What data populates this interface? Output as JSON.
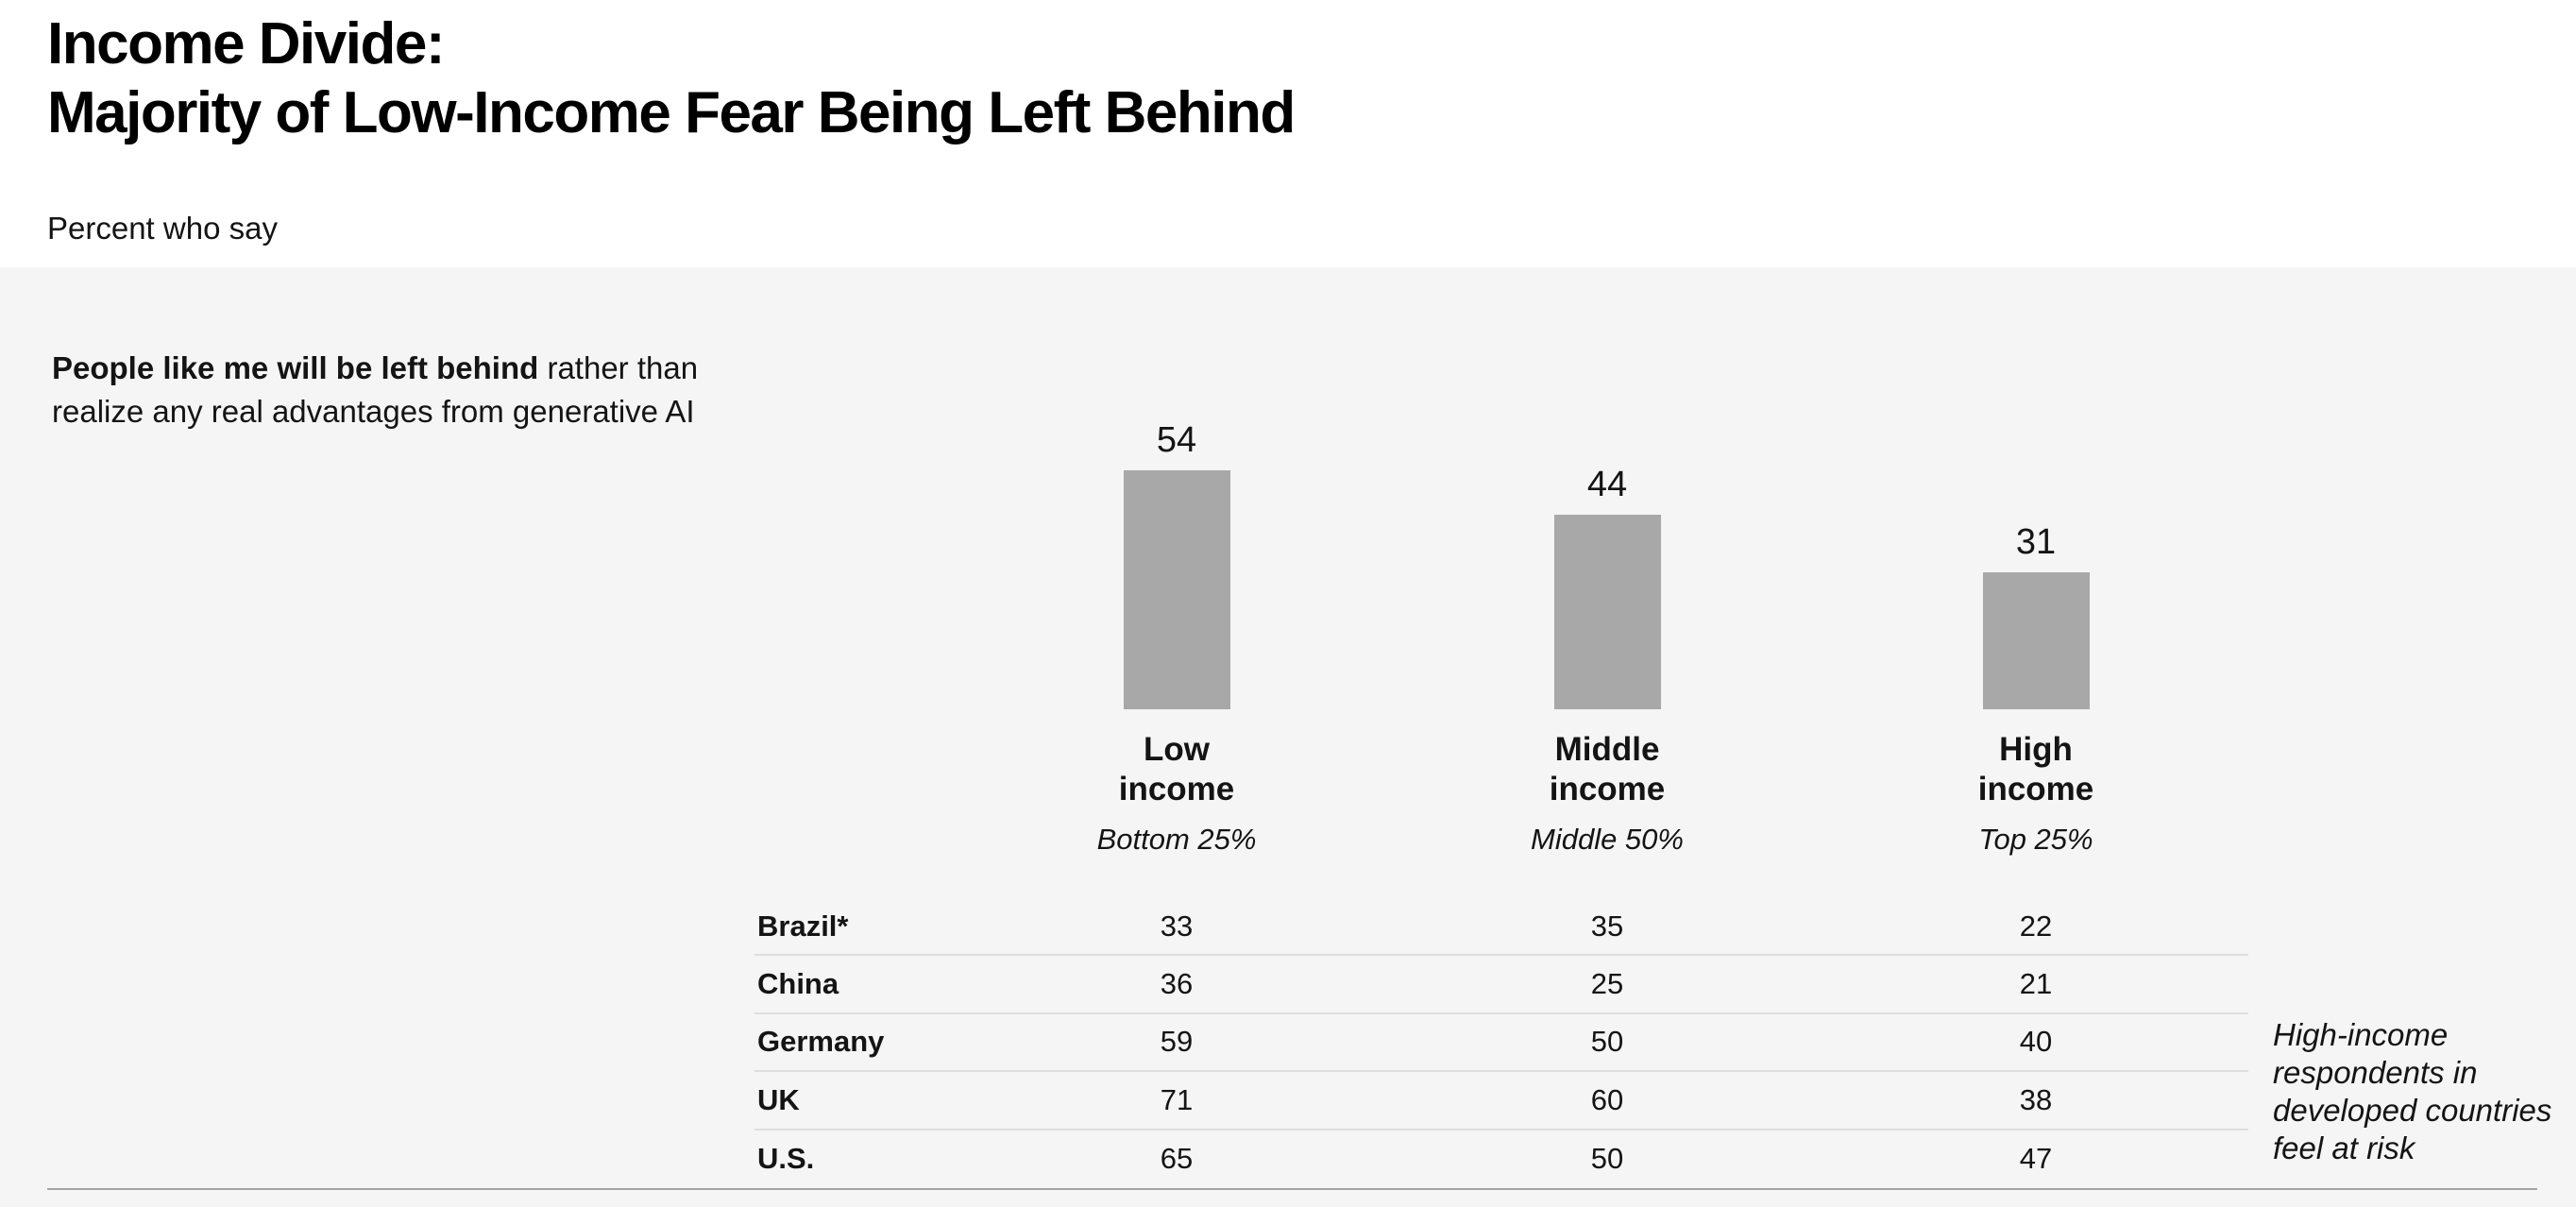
{
  "header": {
    "title_line1": "Income Divide:",
    "title_line2": "Majority of Low-Income Fear Being Left Behind",
    "subtitle": "Percent who say"
  },
  "statement": {
    "bold": "People like me will be left behind",
    "rest_line1": " rather than",
    "line2": "realize any real advantages from generative AI"
  },
  "annotation": "High-income respondents in developed countries feel at risk",
  "colors": {
    "bar": "#a8a8a8",
    "panel_background": "#f5f5f5",
    "page_background": "#ffffff",
    "row_divider": "#dedede",
    "bottom_rule": "#a3a3a3",
    "text": "#141414"
  },
  "chart_data": {
    "type": "bar",
    "title": "Percent who say people like me will be left behind rather than realize any real advantages from generative AI",
    "unit": "percent",
    "categories": [
      "Low income",
      "Middle income",
      "High income"
    ],
    "category_sublabels": [
      "Bottom 25%",
      "Middle 50%",
      "Top 25%"
    ],
    "values": [
      54,
      44,
      31
    ],
    "ylim": [
      0,
      60
    ],
    "value_labels_shown": true,
    "axes_shown": false,
    "legend": "none",
    "bar_color": "#a8a8a8",
    "table": {
      "row_header": "country",
      "columns": [
        "Low income",
        "Middle income",
        "High income"
      ],
      "rows": [
        {
          "country": "Brazil*",
          "values": [
            33,
            35,
            22
          ]
        },
        {
          "country": "China",
          "values": [
            36,
            25,
            21
          ]
        },
        {
          "country": "Germany",
          "values": [
            59,
            50,
            40
          ]
        },
        {
          "country": "UK",
          "values": [
            71,
            60,
            38
          ]
        },
        {
          "country": "U.S.",
          "values": [
            65,
            50,
            47
          ]
        }
      ]
    }
  }
}
